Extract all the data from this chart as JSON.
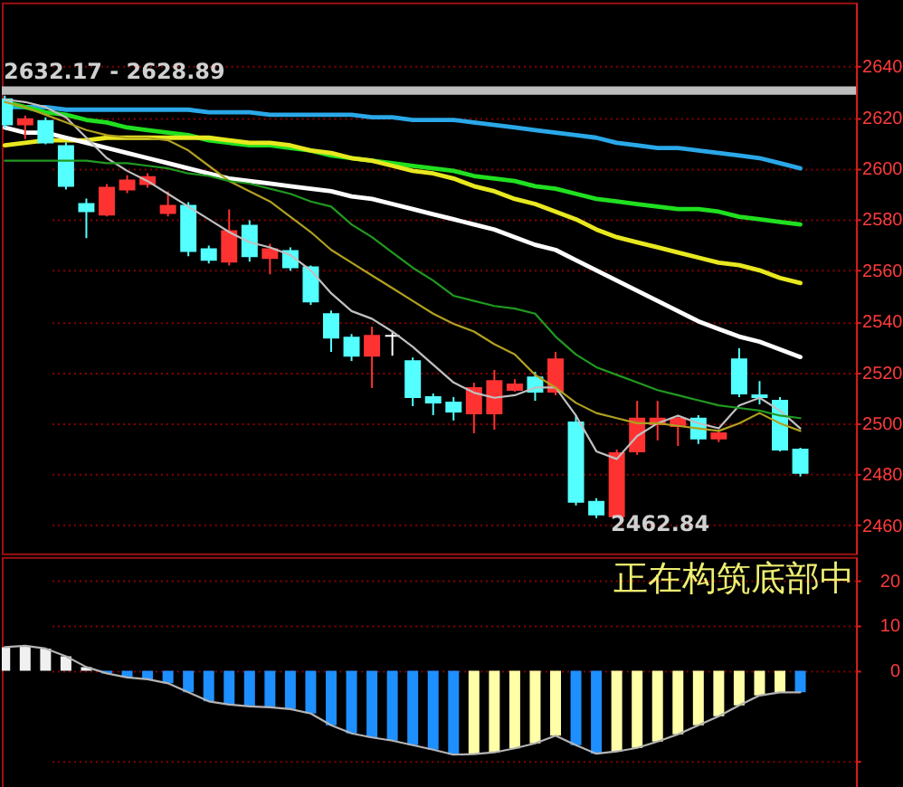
{
  "chart_data": [
    {
      "type": "candlestick",
      "categories": [
        null,
        null,
        null,
        null,
        null,
        null,
        null,
        null,
        null,
        null,
        null,
        null,
        null,
        null,
        null,
        null,
        null,
        null,
        null,
        null,
        null,
        null,
        null,
        null,
        null,
        null,
        null,
        null,
        null,
        null,
        null,
        null,
        null,
        null,
        null,
        null,
        null,
        null,
        null,
        null
      ],
      "ohlc": [
        [
          2627.1,
          2628.5,
          2615.7,
          2617.2
        ],
        [
          2617.2,
          2620.7,
          2611.5,
          2619.3
        ],
        [
          2618.6,
          2620.0,
          2609.4,
          2610.1
        ],
        [
          2608.7,
          2610.1,
          2591.7,
          2593.1
        ],
        [
          2586.0,
          2588.1,
          2572.6,
          2583.2
        ],
        [
          2581.8,
          2593.8,
          2581.1,
          2592.4
        ],
        [
          2591.7,
          2597.3,
          2590.3,
          2595.2
        ],
        [
          2593.8,
          2598.1,
          2592.4,
          2596.6
        ],
        [
          2582.5,
          2591.0,
          2581.1,
          2585.3
        ],
        [
          2585.3,
          2586.7,
          2565.5,
          2567.6
        ],
        [
          2568.3,
          2569.7,
          2562.7,
          2564.1
        ],
        [
          2563.4,
          2583.9,
          2561.9,
          2575.4
        ],
        [
          2577.5,
          2579.6,
          2563.4,
          2565.5
        ],
        [
          2564.8,
          2570.4,
          2558.4,
          2568.3
        ],
        [
          2567.6,
          2569.0,
          2559.8,
          2561.2
        ],
        [
          2561.2,
          2561.9,
          2546.4,
          2547.8
        ],
        [
          2542.8,
          2544.2,
          2528.0,
          2533.6
        ],
        [
          2533.6,
          2535.0,
          2524.4,
          2526.5
        ],
        [
          2526.5,
          2537.9,
          2513.8,
          2534.3
        ],
        [
          2534.3,
          2535.7,
          2526.5,
          2534.3
        ],
        [
          2524.4,
          2525.8,
          2506.7,
          2510.3
        ],
        [
          2510.3,
          2511.7,
          2503.2,
          2508.1
        ],
        [
          2508.1,
          2510.3,
          2501.1,
          2504.6
        ],
        [
          2503.9,
          2515.9,
          2496.1,
          2513.8
        ],
        [
          2503.9,
          2520.9,
          2497.5,
          2516.6
        ],
        [
          2513.1,
          2517.3,
          2512.4,
          2515.2
        ],
        [
          2518.0,
          2520.2,
          2508.8,
          2512.4
        ],
        [
          2512.4,
          2528.0,
          2511.0,
          2525.1
        ],
        [
          2500.3,
          2503.2,
          2467.8,
          2469.2
        ],
        [
          2469.2,
          2470.6,
          2462.84,
          2464.2
        ],
        [
          2463.5,
          2489.7,
          2463.5,
          2488.3
        ],
        [
          2489.0,
          2508.8,
          2487.6,
          2501.8
        ],
        [
          2499.6,
          2508.8,
          2493.3,
          2501.8
        ],
        [
          2498.9,
          2503.2,
          2491.1,
          2501.8
        ],
        [
          2501.8,
          2503.2,
          2491.9,
          2494.0
        ],
        [
          2494.0,
          2497.5,
          2492.6,
          2496.1
        ],
        [
          2525.1,
          2529.4,
          2510.3,
          2511.7
        ],
        [
          2511.0,
          2516.6,
          2507.4,
          2510.3
        ],
        [
          2508.8,
          2510.3,
          2489.0,
          2489.7
        ],
        [
          2489.7,
          2490.4,
          2479.1,
          2480.5
        ]
      ],
      "colors": [
        "#54ffff",
        "#ff3232",
        "#54ffff",
        "#54ffff",
        "#54ffff",
        "#ff3232",
        "#ff3232",
        "#ff3232",
        "#ff3232",
        "#54ffff",
        "#54ffff",
        "#ff3232",
        "#54ffff",
        "#ff3232",
        "#54ffff",
        "#54ffff",
        "#54ffff",
        "#54ffff",
        "#ff3232",
        "#ffffff",
        "#54ffff",
        "#54ffff",
        "#54ffff",
        "#ff3232",
        "#ff3232",
        "#ff3232",
        "#54ffff",
        "#ff3232",
        "#54ffff",
        "#54ffff",
        "#ff3232",
        "#ff3232",
        "#ff3232",
        "#ff3232",
        "#54ffff",
        "#ff3232",
        "#54ffff",
        "#54ffff",
        "#54ffff",
        "#54ffff"
      ],
      "series": [
        {
          "type": "line",
          "color": "#2aa8e8",
          "values": [
            2624,
            2624,
            2624,
            2623,
            2623,
            2623,
            2623,
            2623,
            2623,
            2623,
            2622,
            2622,
            2622,
            2621,
            2621,
            2621,
            2621,
            2621,
            2620,
            2620,
            2619,
            2619,
            2619,
            2618,
            2617,
            2616,
            2615,
            2614,
            2613,
            2612,
            2610,
            2609,
            2608,
            2608,
            2607,
            2606,
            2605,
            2604,
            2602,
            2600
          ]
        },
        {
          "type": "line",
          "color": "#20e020",
          "values": [
            2626,
            2624,
            2622,
            2621,
            2619,
            2618,
            2616,
            2615,
            2614,
            2613,
            2611,
            2610,
            2609,
            2609,
            2608,
            2607,
            2605,
            2604,
            2603,
            2602,
            2601,
            2600,
            2599,
            2597,
            2596,
            2595,
            2593,
            2592,
            2590,
            2588,
            2587,
            2586,
            2585,
            2584,
            2584,
            2583,
            2581,
            2580,
            2579,
            2578
          ]
        },
        {
          "type": "line",
          "color": "#e8e820",
          "values": [
            2609,
            2610,
            2611,
            2611,
            2611,
            2612,
            2612,
            2612,
            2612,
            2612,
            2612,
            2611,
            2610,
            2610,
            2609,
            2607,
            2606,
            2604,
            2603,
            2601,
            2599,
            2598,
            2596,
            2593,
            2591,
            2588,
            2586,
            2583,
            2580,
            2576,
            2573,
            2571,
            2569,
            2567,
            2565,
            2563,
            2562,
            2560,
            2557,
            2555
          ]
        },
        {
          "type": "line",
          "color": "#ffffff",
          "values": [
            2616,
            2614,
            2614,
            2612,
            2610,
            2608,
            2606,
            2604,
            2602,
            2600,
            2598,
            2596,
            2595,
            2594,
            2593,
            2592,
            2591,
            2589,
            2588,
            2586,
            2584,
            2582,
            2580,
            2578,
            2576,
            2573,
            2570,
            2568,
            2564,
            2560,
            2556,
            2552,
            2548,
            2544,
            2540,
            2537,
            2534,
            2532,
            2529,
            2526
          ]
        },
        {
          "type": "line",
          "color": "#c0c0c0",
          "values": [
            2627,
            2626,
            2624,
            2620,
            2612,
            2604,
            2599,
            2595,
            2590,
            2585,
            2580,
            2575,
            2571,
            2569,
            2566,
            2560,
            2551,
            2544,
            2541,
            2536,
            2530,
            2523,
            2516,
            2512,
            2510,
            2511,
            2514,
            2514,
            2503,
            2489,
            2486,
            2495,
            2500,
            2503,
            2500,
            2498,
            2507,
            2510,
            2505,
            2498
          ]
        },
        {
          "type": "line",
          "color": "#b0a020",
          "values": [
            2626,
            2624,
            2621,
            2618,
            2615,
            2613,
            2612,
            2612,
            2611,
            2607,
            2601,
            2595,
            2591,
            2587,
            2581,
            2575,
            2568,
            2563,
            2558,
            2553,
            2548,
            2543,
            2539,
            2536,
            2531,
            2527,
            2519,
            2514,
            2508,
            2504,
            2502,
            2500,
            2500,
            2499,
            2498,
            2497,
            2500,
            2504,
            2500,
            2497
          ]
        },
        {
          "type": "line",
          "color": "#209a20",
          "values": [
            2603,
            2603,
            2603,
            2603,
            2603,
            2602,
            2602,
            2601,
            2600,
            2598,
            2597,
            2595,
            2594,
            2592,
            2590,
            2587,
            2585,
            2578,
            2573,
            2567,
            2561,
            2556,
            2550,
            2548,
            2546,
            2545,
            2543,
            2534,
            2527,
            2522,
            2519,
            2516,
            2513,
            2511,
            2509,
            2507,
            2506,
            2505,
            2503,
            2502
          ]
        }
      ],
      "ylim": [
        2449,
        2665
      ],
      "yticks": [
        2640,
        2620,
        2600,
        2580,
        2560,
        2540,
        2520,
        2500,
        2480,
        2460
      ],
      "grid": "y",
      "bands": [
        {
          "axis": "y",
          "from": 2628.89,
          "to": 2632.17,
          "label": "2632.17 - 2628.89",
          "color": "#bdbdbd"
        }
      ],
      "annotations": [
        "2462.84"
      ]
    },
    {
      "type": "bar",
      "categories": [
        null,
        null,
        null,
        null,
        null,
        null,
        null,
        null,
        null,
        null,
        null,
        null,
        null,
        null,
        null,
        null,
        null,
        null,
        null,
        null,
        null,
        null,
        null,
        null,
        null,
        null,
        null,
        null,
        null,
        null,
        null,
        null,
        null,
        null,
        null,
        null,
        null,
        null,
        null,
        null
      ],
      "series": [
        {
          "type": "bar",
          "colors": [
            "#f0f0f0",
            "#f0f0f0",
            "#f0f0f0",
            "#f0f0f0",
            "#f0f0f0",
            "#1e8fff",
            "#1e8fff",
            "#1e8fff",
            "#1e8fff",
            "#1e8fff",
            "#1e8fff",
            "#1e8fff",
            "#1e8fff",
            "#1e8fff",
            "#1e8fff",
            "#1e8fff",
            "#1e8fff",
            "#1e8fff",
            "#1e8fff",
            "#1e8fff",
            "#1e8fff",
            "#1e8fff",
            "#1e8fff",
            "#ffffa8",
            "#ffffa8",
            "#ffffa8",
            "#ffffa8",
            "#ffffa8",
            "#1e8fff",
            "#1e8fff",
            "#ffffa8",
            "#ffffa8",
            "#ffffa8",
            "#ffffa8",
            "#ffffa8",
            "#ffffa8",
            "#ffffa8",
            "#ffffa8",
            "#ffffa8",
            "#1e8fff"
          ],
          "values": [
            5.2,
            5.5,
            4.9,
            3.2,
            0.8,
            -0.6,
            -1.5,
            -1.9,
            -2.8,
            -4.8,
            -6.8,
            -7.5,
            -7.9,
            -8.1,
            -8.5,
            -9.5,
            -12.1,
            -13.9,
            -14.8,
            -15.5,
            -16.5,
            -17.5,
            -18.6,
            -18.5,
            -18.1,
            -17.2,
            -16.1,
            -14.4,
            -16.5,
            -18.4,
            -17.9,
            -17.1,
            -15.7,
            -14.1,
            -12.1,
            -10.1,
            -7.7,
            -5.5,
            -4.8,
            -4.8
          ]
        },
        {
          "type": "line",
          "color": "#b4b4b4",
          "values": [
            5.2,
            5.5,
            4.9,
            3.2,
            0.8,
            -0.6,
            -1.5,
            -1.9,
            -2.8,
            -4.8,
            -6.8,
            -7.5,
            -7.9,
            -8.1,
            -8.5,
            -9.5,
            -12.1,
            -13.9,
            -14.8,
            -15.5,
            -16.5,
            -17.5,
            -18.6,
            -18.5,
            -18.1,
            -17.2,
            -16.1,
            -14.4,
            -16.5,
            -18.4,
            -17.9,
            -17.1,
            -15.7,
            -14.1,
            -12.1,
            -10.1,
            -7.7,
            -5.5,
            -4.8,
            -4.8
          ]
        }
      ],
      "ylim": [
        -26.8,
        25.2
      ],
      "yticks": [
        20,
        10,
        0,
        {
          "value": -20,
          "label": null
        }
      ],
      "grid": "y",
      "annotations": [
        "正在构筑底部中"
      ]
    }
  ]
}
